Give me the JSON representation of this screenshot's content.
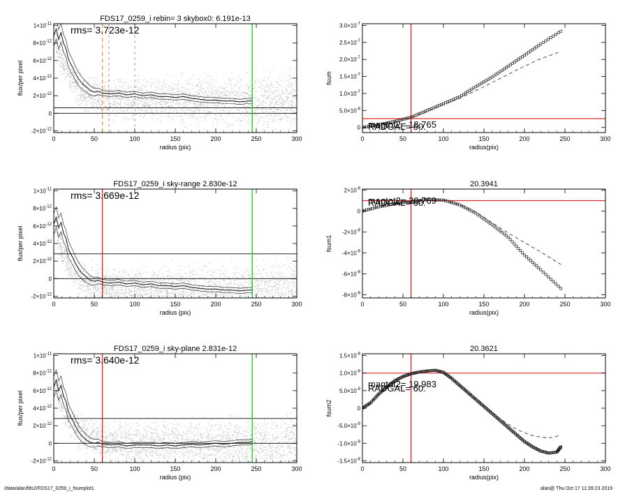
{
  "footer": {
    "path": "/data/alan/fds2/FDS17_0259_i_fsumplot1",
    "stamp": "alan@  Thu Oct 17 11:39:23 2019"
  },
  "colors": {
    "scatter": "#b4b4b4",
    "profile": "#111111",
    "red": "#e02828",
    "green": "#22cc22",
    "orange": "#e8a040"
  },
  "chart_data": [
    {
      "type": "scatter",
      "title": "FDS17_0259_i rebin= 3    skybox0:  6.191e-13",
      "annotation": "rms= 3.723e-12",
      "xlabel": "radius (pix)",
      "ylabel": "flux/per pixel",
      "xlim": [
        0,
        300
      ],
      "ylim": [
        -2.2e-12,
        1.02e-11
      ],
      "xticks": [
        0,
        50,
        100,
        150,
        200,
        250,
        300
      ],
      "xtick_labels": [
        "0",
        "50",
        "100",
        "150",
        "200",
        "250",
        "300"
      ],
      "yticks": [
        -2e-12,
        0,
        2e-12,
        4e-12,
        6e-12,
        8e-12,
        1e-11
      ],
      "ytick_labels": [
        [
          "-2",
          "-12"
        ],
        [
          "0",
          ""
        ],
        [
          "2",
          "-12"
        ],
        [
          "4",
          "-12"
        ],
        [
          "6",
          "-12"
        ],
        [
          "8",
          "-12"
        ],
        [
          "1",
          "-11"
        ]
      ],
      "hlines": [
        6.191e-13,
        0
      ],
      "vlines": [
        {
          "x": 245,
          "color": "green",
          "style": "solid"
        },
        {
          "x": 60,
          "color": "orange",
          "style": "dashed"
        },
        {
          "x": 68,
          "color": "gray",
          "style": "dashed"
        },
        {
          "x": 100,
          "color": "gray",
          "style": "dashed"
        }
      ],
      "profile": {
        "x": [
          0,
          3,
          6,
          9,
          12,
          15,
          18,
          21,
          24,
          27,
          30,
          35,
          40,
          45,
          50,
          55,
          60,
          70,
          80,
          90,
          100,
          110,
          120,
          130,
          140,
          150,
          160,
          170,
          180,
          190,
          200,
          210,
          220,
          230,
          240,
          245
        ],
        "y": [
          8.8e-12,
          9.6e-12,
          8.4e-12,
          9.2e-12,
          8e-12,
          7.4e-12,
          6.2e-12,
          5.6e-12,
          5.1e-12,
          4.5e-12,
          4e-12,
          3.4e-12,
          3e-12,
          2.6e-12,
          2.4e-12,
          2.5e-12,
          2.3e-12,
          2.2e-12,
          2.3e-12,
          2.1e-12,
          2.2e-12,
          2e-12,
          2.1e-12,
          1.9e-12,
          1.9e-12,
          1.8e-12,
          1.9e-12,
          1.7e-12,
          1.6e-12,
          1.5e-12,
          1.5e-12,
          1.4e-12,
          1.4e-12,
          1.3e-12,
          1.4e-12,
          1.4e-12
        ]
      },
      "scatter_model": {
        "base": 1.5e-12,
        "amp": 8e-12,
        "scale": 18,
        "spread": 2.4e-12,
        "n": 2400
      }
    },
    {
      "type": "line",
      "title": "",
      "annotation": [
        "RADGAL=   60.",
        "magtot2= 18.765"
      ],
      "xlabel": "radius(pix)",
      "ylabel": "fsum",
      "xlim": [
        0,
        300
      ],
      "ylim": [
        -1.5e-08,
        3.05e-07
      ],
      "xticks": [
        0,
        50,
        100,
        150,
        200,
        250,
        300
      ],
      "xtick_labels": [
        "0",
        "50",
        "100",
        "150",
        "200",
        "250",
        "300"
      ],
      "yticks": [
        0,
        5e-08,
        1e-07,
        1.5e-07,
        2e-07,
        2.5e-07,
        3e-07
      ],
      "ytick_labels": [
        [
          "0",
          ""
        ],
        [
          "5.0",
          "-8"
        ],
        [
          "1.0",
          "-7"
        ],
        [
          "1.5",
          "-7"
        ],
        [
          "2.0",
          "-7"
        ],
        [
          "2.5",
          "-7"
        ],
        [
          "3.0",
          "-7"
        ]
      ],
      "hlines": [
        2.6e-08
      ],
      "vlines": [
        {
          "x": 60,
          "color": "red",
          "style": "solid"
        }
      ],
      "series": [
        {
          "style": "markers",
          "x": [
            0,
            20,
            40,
            60,
            80,
            100,
            120,
            140,
            160,
            180,
            200,
            220,
            245
          ],
          "y": [
            0,
            8e-09,
            1.8e-08,
            3e-08,
            5e-08,
            7e-08,
            9e-08,
            1.2e-07,
            1.48e-07,
            1.8e-07,
            2.12e-07,
            2.45e-07,
            2.83e-07
          ]
        },
        {
          "style": "dashed",
          "x": [
            0,
            20,
            40,
            60,
            80,
            100,
            120,
            140,
            160,
            180,
            200,
            220,
            245
          ],
          "y": [
            0,
            8e-09,
            1.8e-08,
            3e-08,
            4.8e-08,
            6.7e-08,
            8.6e-08,
            1.08e-07,
            1.32e-07,
            1.56e-07,
            1.8e-07,
            2.02e-07,
            2.23e-07
          ]
        }
      ]
    },
    {
      "type": "scatter",
      "title": "FDS17_0259_i sky-range  2.830e-12",
      "annotation": "rms= 3.669e-12",
      "xlabel": "radius (pix)",
      "ylabel": "flux/per pixel",
      "xlim": [
        0,
        300
      ],
      "ylim": [
        -2.2e-12,
        1.02e-11
      ],
      "xticks": [
        0,
        50,
        100,
        150,
        200,
        250,
        300
      ],
      "xtick_labels": [
        "0",
        "50",
        "100",
        "150",
        "200",
        "250",
        "300"
      ],
      "yticks": [
        -2e-12,
        0,
        2e-12,
        4e-12,
        6e-12,
        8e-12,
        1e-11
      ],
      "ytick_labels": [
        [
          "-2",
          "-12"
        ],
        [
          "0",
          ""
        ],
        [
          "2",
          "-12"
        ],
        [
          "4",
          "-12"
        ],
        [
          "6",
          "-12"
        ],
        [
          "8",
          "-12"
        ],
        [
          "1",
          "-11"
        ]
      ],
      "hlines": [
        2.83e-12,
        0
      ],
      "vlines": [
        {
          "x": 245,
          "color": "green",
          "style": "solid"
        },
        {
          "x": 60,
          "color": "red",
          "style": "solid"
        }
      ],
      "profile": {
        "x": [
          0,
          3,
          6,
          9,
          12,
          15,
          18,
          21,
          24,
          27,
          30,
          35,
          40,
          45,
          50,
          55,
          60,
          70,
          80,
          90,
          100,
          110,
          120,
          130,
          140,
          150,
          160,
          170,
          180,
          190,
          200,
          210,
          220,
          230,
          240,
          245
        ],
        "y": [
          6.2e-12,
          7e-12,
          5.8e-12,
          6.4e-12,
          5.2e-12,
          4.6e-12,
          3.4e-12,
          2.8e-12,
          2.3e-12,
          1.7e-12,
          1.2e-12,
          6e-13,
          2e-13,
          -2e-13,
          -3e-13,
          -2e-13,
          -4e-13,
          -5e-13,
          -4e-13,
          -6e-13,
          -5e-13,
          -7e-13,
          -6e-13,
          -8e-13,
          -8e-13,
          -9e-13,
          -8e-13,
          -1e-12,
          -1.1e-12,
          -1.2e-12,
          -1.2e-12,
          -1.3e-12,
          -1.3e-12,
          -1.4e-12,
          -1.3e-12,
          -1.3e-12
        ]
      },
      "scatter_model": {
        "base": -1.2e-12,
        "amp": 8e-12,
        "scale": 18,
        "spread": 2.4e-12,
        "n": 2400
      }
    },
    {
      "type": "line",
      "title": "20.3941",
      "annotation": [
        "RADGAL=   60.",
        "magtot2= 20.769"
      ],
      "xlabel": "radius(pix)",
      "ylabel": "fsum1",
      "xlim": [
        0,
        300
      ],
      "ylim": [
        -8.3e-08,
        2.1e-08
      ],
      "xticks": [
        0,
        50,
        100,
        150,
        200,
        250,
        300
      ],
      "xtick_labels": [
        "0",
        "50",
        "100",
        "150",
        "200",
        "250",
        "300"
      ],
      "yticks": [
        -8e-08,
        -6e-08,
        -4e-08,
        -2e-08,
        0,
        2e-08
      ],
      "ytick_labels": [
        [
          "-8",
          "-8"
        ],
        [
          "-6",
          "-8"
        ],
        [
          "-4",
          "-8"
        ],
        [
          "-2",
          "-8"
        ],
        [
          "0",
          ""
        ],
        [
          "2",
          "-8"
        ]
      ],
      "hlines": [
        1e-08
      ],
      "vlines": [
        {
          "x": 60,
          "color": "red",
          "style": "solid"
        }
      ],
      "series": [
        {
          "style": "markers",
          "x": [
            0,
            20,
            40,
            60,
            80,
            100,
            120,
            140,
            160,
            180,
            200,
            220,
            245
          ],
          "y": [
            0,
            4e-09,
            7e-09,
            9e-09,
            1.1e-08,
            1.05e-08,
            6e-09,
            -2e-09,
            -1.3e-08,
            -2.5e-08,
            -4.2e-08,
            -5.6e-08,
            -7.4e-08
          ]
        },
        {
          "style": "dashed",
          "x": [
            0,
            20,
            40,
            60,
            80,
            100,
            120,
            140,
            160,
            180,
            200,
            220,
            245
          ],
          "y": [
            0,
            4e-09,
            7e-09,
            9e-09,
            1.1e-08,
            1.05e-08,
            6e-09,
            -1e-09,
            -1.1e-08,
            -2.1e-08,
            -3e-08,
            -3.9e-08,
            -5.1e-08
          ]
        }
      ]
    },
    {
      "type": "scatter",
      "title": "FDS17_0259_i sky-plane  2.831e-12",
      "annotation": "rms= 3.640e-12",
      "xlabel": "radius (pix)",
      "ylabel": "flux/per pixel",
      "xlim": [
        0,
        300
      ],
      "ylim": [
        -2.2e-12,
        1.02e-11
      ],
      "xticks": [
        0,
        50,
        100,
        150,
        200,
        250,
        300
      ],
      "xtick_labels": [
        "0",
        "50",
        "100",
        "150",
        "200",
        "250",
        "300"
      ],
      "yticks": [
        -2e-12,
        0,
        2e-12,
        4e-12,
        6e-12,
        8e-12,
        1e-11
      ],
      "ytick_labels": [
        [
          "-2",
          "-12"
        ],
        [
          "0",
          ""
        ],
        [
          "2",
          "-12"
        ],
        [
          "4",
          "-12"
        ],
        [
          "6",
          "-12"
        ],
        [
          "8",
          "-12"
        ],
        [
          "1",
          "-11"
        ]
      ],
      "hlines": [
        2.831e-12,
        0
      ],
      "vlines": [
        {
          "x": 245,
          "color": "green",
          "style": "solid"
        },
        {
          "x": 60,
          "color": "red",
          "style": "solid"
        }
      ],
      "profile": {
        "x": [
          0,
          3,
          6,
          9,
          12,
          15,
          18,
          21,
          24,
          27,
          30,
          35,
          40,
          45,
          50,
          55,
          60,
          70,
          80,
          90,
          100,
          110,
          120,
          130,
          140,
          150,
          160,
          170,
          180,
          190,
          200,
          210,
          220,
          230,
          240,
          245
        ],
        "y": [
          6.4e-12,
          7.2e-12,
          6e-12,
          6.6e-12,
          5.4e-12,
          4.8e-12,
          3.6e-12,
          3e-12,
          2.5e-12,
          1.9e-12,
          1.4e-12,
          8e-13,
          4e-13,
          1e-13,
          0,
          1e-13,
          -1e-13,
          -2e-13,
          -1e-13,
          -3e-13,
          -2e-13,
          -2e-13,
          -2e-13,
          -3e-13,
          -2e-13,
          -3e-13,
          -2e-13,
          -1e-13,
          -2e-13,
          -1e-13,
          0,
          -1e-13,
          0,
          1e-13,
          1e-13,
          2e-13
        ]
      },
      "scatter_model": {
        "base": 0,
        "amp": 8e-12,
        "scale": 18,
        "spread": 2.4e-12,
        "n": 2400
      }
    },
    {
      "type": "line",
      "title": "20.3621",
      "annotation": [
        "RADGAL=   60.",
        "magtot2= 19.983"
      ],
      "xlabel": "radius(pix)",
      "ylabel": "fsum2",
      "xlim": [
        0,
        300
      ],
      "ylim": [
        -1.55e-08,
        1.55e-08
      ],
      "xticks": [
        0,
        50,
        100,
        150,
        200,
        250,
        300
      ],
      "xtick_labels": [
        "0",
        "50",
        "100",
        "150",
        "200",
        "250",
        "300"
      ],
      "yticks": [
        -1.5e-08,
        -1e-08,
        -5e-09,
        0,
        5e-09,
        1e-08,
        1.5e-08
      ],
      "ytick_labels": [
        [
          "-1.5",
          "-8"
        ],
        [
          "-1.0",
          "-8"
        ],
        [
          "-5.0",
          "-9"
        ],
        [
          "0",
          ""
        ],
        [
          "5.0",
          "-9"
        ],
        [
          "1.0",
          "-8"
        ],
        [
          "1.5",
          "-8"
        ]
      ],
      "hlines": [
        1e-08
      ],
      "vlines": [
        {
          "x": 60,
          "color": "red",
          "style": "solid"
        }
      ],
      "series": [
        {
          "style": "markers",
          "x": [
            0,
            10,
            20,
            30,
            40,
            50,
            60,
            70,
            80,
            90,
            100,
            110,
            120,
            130,
            140,
            150,
            160,
            170,
            180,
            190,
            200,
            210,
            220,
            230,
            240,
            245
          ],
          "y": [
            0,
            1.5e-09,
            4e-09,
            6e-09,
            7.8e-09,
            9e-09,
            9.8e-09,
            1.03e-08,
            1.06e-08,
            1.08e-08,
            1.02e-08,
            8.5e-09,
            6.5e-09,
            4.5e-09,
            2.5e-09,
            5e-10,
            -1.5e-09,
            -3.5e-09,
            -5.5e-09,
            -7.5e-09,
            -9.5e-09,
            -1.1e-08,
            -1.22e-08,
            -1.28e-08,
            -1.25e-08,
            -1.1e-08
          ]
        },
        {
          "style": "dashed",
          "x": [
            0,
            10,
            20,
            30,
            40,
            50,
            60,
            70,
            80,
            90,
            100,
            110,
            120,
            130,
            140,
            150,
            160,
            170,
            180,
            190,
            200,
            210,
            220,
            230,
            240,
            245
          ],
          "y": [
            0,
            1.5e-09,
            4e-09,
            6e-09,
            7.8e-09,
            9e-09,
            9.8e-09,
            1.03e-08,
            1.06e-08,
            1.08e-08,
            1.02e-08,
            8.5e-09,
            6.5e-09,
            4.5e-09,
            2.5e-09,
            5e-10,
            -1.3e-09,
            -3e-09,
            -4.6e-09,
            -6e-09,
            -7e-09,
            -7.8e-09,
            -8.2e-09,
            -8.5e-09,
            -8e-09,
            -7.6e-09
          ]
        }
      ]
    }
  ]
}
